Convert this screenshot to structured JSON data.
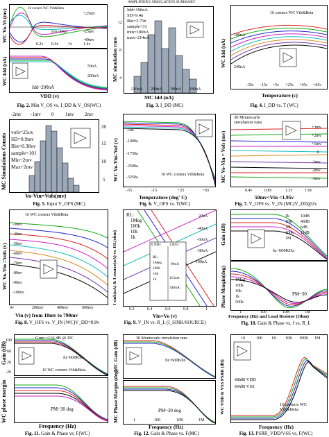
{
  "figures": [
    {
      "id": "fig2",
      "caption_num": "Fig. 2.",
      "caption_text": "Min V_OS vs. I_DD & V_OS(WC)",
      "top": {
        "ylabel": "WC Vo-Vi (mv)",
        "ticks_y": [
          "+25mv",
          "-25mv",
          "-40mv"
        ],
        "ticks_x": [
          "0.2v",
          "0.6v",
          "1v",
          "1.4v"
        ],
        "notes": [
          "16 corners WC Vth&Beta",
          "vos=40uv",
          "vofs=40uv"
        ]
      },
      "bottom": {
        "ylabel": "WC Idd (nA)",
        "ticks_y": [
          "50nA",
          "200nA"
        ],
        "note": "Idd~200nA",
        "xlabel": "VDD (v)"
      }
    },
    {
      "id": "fig3",
      "caption_num": "Fig. 3.",
      "caption_text": "I_DD (MC)",
      "title": "AMPLIFIER'S SIMULATION SUMMARY",
      "stats": [
        "Idd=196nA",
        "SD=9.4n",
        "Bin=3.75n",
        "sample=31",
        "min=180nA",
        "max=214nA"
      ],
      "ylabel": "MC simulation runs",
      "xlabel": "MC Idd (nA)",
      "ticks_y": [
        "12",
        "8",
        "4"
      ],
      "ticks_x": [
        "210nA",
        "200nA",
        "190nA",
        "180nA"
      ]
    },
    {
      "id": "fig4",
      "caption_num": "Fig. 4.",
      "caption_text": "I_DD vs. T (WC)",
      "note": "16 corners WC Vth&Beta",
      "ylabel": "WC Idd (nA)",
      "xlabel": "Temperature (c)",
      "ticks_y": [
        "180nA",
        "240nA"
      ],
      "ticks_x": [
        "-35c",
        "-15c",
        "+5c",
        "+25c",
        "+45c",
        "+65c"
      ]
    },
    {
      "id": "fig5",
      "caption_num": "Fig. 5.",
      "caption_text": "Input V_OFS (MC)",
      "ticks_top": [
        "-2mv",
        "-1mv",
        "0",
        "1mv",
        "2mv"
      ],
      "stats": [
        "vofs=25uv",
        "SD=0.9mv",
        "Bin=0.38uv",
        "sample=101",
        "Min~2mv",
        "Max+2mv"
      ],
      "ylabel": "MC Simulations Counts",
      "xlabel": "Vo-Vin=Vofs(mv)",
      "ticks_y": [
        "20",
        "15",
        "10",
        "5"
      ]
    },
    {
      "id": "fig6",
      "caption_num": "Fig. 6.",
      "caption_text": "V_OFS vs. T(WC)",
      "ylabel": "WC Vo-Vin=Vof (v)",
      "xlabel": "Temperature (deg' C)",
      "ticks_y": [
        "-50a",
        "-1000a",
        "-1750a",
        "-2500a",
        "-3250a"
      ],
      "ticks_x": [
        "-55",
        "-15",
        "+25",
        "+65"
      ],
      "note": "16 WC corners Vth&Beta"
    },
    {
      "id": "fig7",
      "caption_num": "Fig. 7.",
      "caption_text": "V_OFS vs. V_IN (MC)V_DD@2v",
      "note": "30 Montecarlo simulation runs",
      "ylabel": "MC Vo-Vin = Vofs (mv)",
      "xlabel": "50mv<Vin <1.95v",
      "ticks_y": [
        "+3mv",
        "+2mv",
        "+1mv",
        "0",
        "-1mv",
        "-2mv",
        "-3mv"
      ],
      "ticks_x": [
        "0.4v",
        "0.8v",
        "1.2v",
        "1.6v"
      ]
    },
    {
      "id": "fig8",
      "caption_num": "Fig. 8.",
      "caption_text": "V_OFS vs. V_IN (WC)V_DD=0.8v",
      "note": "16 WC corners Vth&Beta",
      "ylabel": "WC Vo-Vin =Vofs (v)",
      "xlabel": "Vin (v) from 10mv to 790mv",
      "ticks_y": [
        "-30uv",
        "-40uv",
        "-50uv",
        "-60uv",
        "-70uv",
        "-80uv",
        "-90uv",
        "-100uv"
      ],
      "ticks_x": [
        "0v",
        "200mv",
        "400mv",
        "600mv"
      ]
    },
    {
      "id": "fig9",
      "caption_num": "Fig. 9.",
      "caption_text": "V_IN vs. R_L (I_SINK/SOURCE)",
      "ylabel": "I sink(nA) & I source(nA) vs. RL(ohm)",
      "xlabel": "Vin=Vo (v)",
      "labels": [
        "RL:",
        "1Meg",
        "100k",
        "10k",
        "1k"
      ],
      "ticks_y": [
        "20nA",
        "-40nA",
        "-60nA",
        "-80nA",
        "-100nA"
      ],
      "ticks_x": [
        "0.2",
        "0.4",
        "0.6",
        "0.8",
        "1"
      ],
      "inset": [
        "0.999v",
        "1.001v",
        "RL:",
        "1Meg",
        "100k",
        "10k",
        "1k",
        "90nA",
        "115nA",
        "340nA"
      ]
    },
    {
      "id": "fig10",
      "caption_num": "Fig. 10.",
      "caption_text": "Gain & Phase vs. f vs. R_L",
      "ylabel_top": "Gain (dB)",
      "ylabel_bottom": "Phase Margin(deg)",
      "xlabel": "Frequency (Hz) and Load Resistor (Ohm)",
      "ticks_x": [
        "1",
        "100",
        "10K",
        "1M"
      ],
      "gain_labels": [
        "1k",
        "10K",
        "10k",
        "100k",
        "1M"
      ],
      "gain_db": [
        "10dB",
        "48dB",
        "6dB",
        "11dB"
      ],
      "pm_labels": [
        "1Meg",
        "100k",
        "10k",
        "1k",
        "500k"
      ],
      "note_fu": "fu~600KHz",
      "note_pm": "PM~30"
    },
    {
      "id": "fig11",
      "caption_num": "Fig. 11.",
      "caption_text": "Gain & Phase vs. F(WC)",
      "note_gain": "Gmn ~116 dB @ DC",
      "note_fu": "fu~600Khz",
      "note_corner": "16 WC corners Vth&Beta",
      "ylabel_top": "Gain (dB)",
      "ylabel_bottom": "WC phase margin",
      "xlabel": "Frequency (Hz)",
      "note_pm": "PM~30 deg",
      "ticks_y": [
        "100",
        "60",
        "20",
        "-20"
      ]
    },
    {
      "id": "fig12",
      "caption_num": "Fig. 12.",
      "caption_text": "Gain & Phase vs. F(MC)",
      "note": "30 Montecarlo simulation runs",
      "note_fu": "fu~600Khz",
      "ylabel_top": "MC Gain (dB)",
      "ylabel_bottom": "MC Phase Margin (deg)",
      "xlabel": "Frequency (Hz)",
      "note_pm": "PM~30 deg",
      "ticks_x": [
        "1",
        "100",
        "10K",
        "1M"
      ]
    },
    {
      "id": "fig13",
      "caption_num": "Fig. 13.",
      "caption_text": "PSRR_VDD/VSS vs. F(WC)",
      "ylabel": "WC VDD & VSS PSRR (dB)",
      "xlabel": "Frequency (Hz)",
      "ticks_x": [
        "10",
        "100",
        "1K",
        "10K",
        "100K",
        "1M"
      ],
      "notes": [
        "-88dB VDD",
        "-89dB VSS",
        "16 corners WC Vth&Beta"
      ]
    }
  ],
  "colors": {
    "red": "#d22",
    "green": "#1a1",
    "blue": "#22c",
    "magenta": "#c2c",
    "cyan": "#1bb",
    "black": "#000",
    "purple": "#73a",
    "orange": "#d82",
    "gray": "#9aa8b8"
  }
}
